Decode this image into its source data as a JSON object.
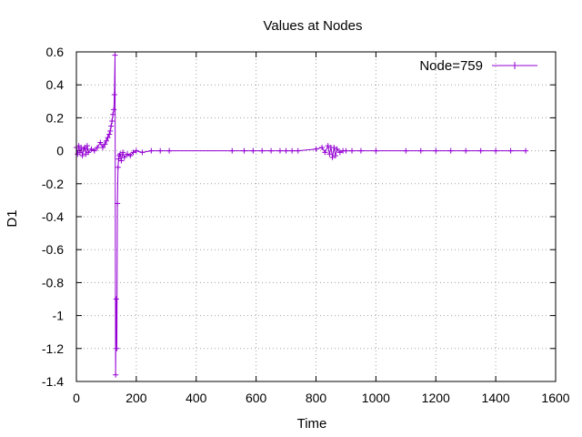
{
  "chart_data": {
    "type": "line",
    "title": "Values at Nodes",
    "xlabel": "Time",
    "ylabel": "D1",
    "xlim": [
      0,
      1600
    ],
    "ylim": [
      -1.4,
      0.6
    ],
    "xticks": [
      0,
      200,
      400,
      600,
      800,
      1000,
      1200,
      1400,
      1600
    ],
    "yticks": [
      0.6,
      0.4,
      0.2,
      0,
      -0.2,
      -0.4,
      -0.6,
      -0.8,
      -1,
      -1.2,
      -1.4
    ],
    "xtick_labels": [
      "0",
      "200",
      "400",
      "600",
      "800",
      "1000",
      "1200",
      "1400",
      "1600"
    ],
    "ytick_labels": [
      "0.6",
      "0.4",
      "0.2",
      "0",
      "-0.2",
      "-0.4",
      "-0.6",
      "-0.8",
      "-1",
      "-1.2",
      "-1.4"
    ],
    "grid": true,
    "legend_position": "top-right",
    "series": [
      {
        "name": "Node=759",
        "color": "#9400d3",
        "marker": "plus",
        "x": [
          0,
          4,
          8,
          12,
          16,
          20,
          24,
          28,
          32,
          36,
          40,
          50,
          60,
          70,
          80,
          88,
          95,
          100,
          105,
          110,
          113,
          116,
          119,
          122,
          125,
          127,
          129,
          131,
          133,
          135,
          137,
          139,
          141,
          143,
          146,
          150,
          155,
          160,
          170,
          180,
          190,
          200,
          220,
          250,
          280,
          310,
          520,
          560,
          590,
          620,
          650,
          680,
          700,
          720,
          740,
          800,
          820,
          830,
          840,
          845,
          850,
          855,
          860,
          865,
          870,
          880,
          890,
          900,
          920,
          950,
          1000,
          1100,
          1150,
          1200,
          1250,
          1300,
          1350,
          1400,
          1450,
          1500
        ],
        "y": [
          0.02,
          -0.02,
          0.03,
          -0.01,
          0.02,
          -0.03,
          0.01,
          0.02,
          -0.02,
          0.03,
          -0.01,
          0.01,
          0.0,
          0.02,
          0.05,
          0.02,
          0.04,
          0.06,
          0.08,
          0.1,
          0.12,
          0.15,
          0.18,
          0.22,
          0.25,
          0.34,
          0.58,
          -1.36,
          -0.9,
          -1.2,
          -0.32,
          -0.1,
          -0.05,
          -0.03,
          -0.02,
          -0.06,
          -0.01,
          -0.04,
          -0.02,
          -0.03,
          -0.01,
          0.0,
          -0.01,
          0.0,
          0.0,
          0.0,
          0.0,
          0.0,
          0.0,
          0.0,
          0.0,
          0.0,
          0.0,
          0.0,
          0.0,
          0.01,
          0.02,
          -0.01,
          0.03,
          -0.02,
          0.02,
          -0.04,
          0.02,
          -0.03,
          0.01,
          -0.01,
          0.0,
          0.0,
          0.0,
          0.0,
          0.0,
          0.0,
          0.0,
          0.0,
          0.0,
          0.0,
          0.0,
          0.0,
          0.0,
          0.0
        ]
      }
    ]
  }
}
